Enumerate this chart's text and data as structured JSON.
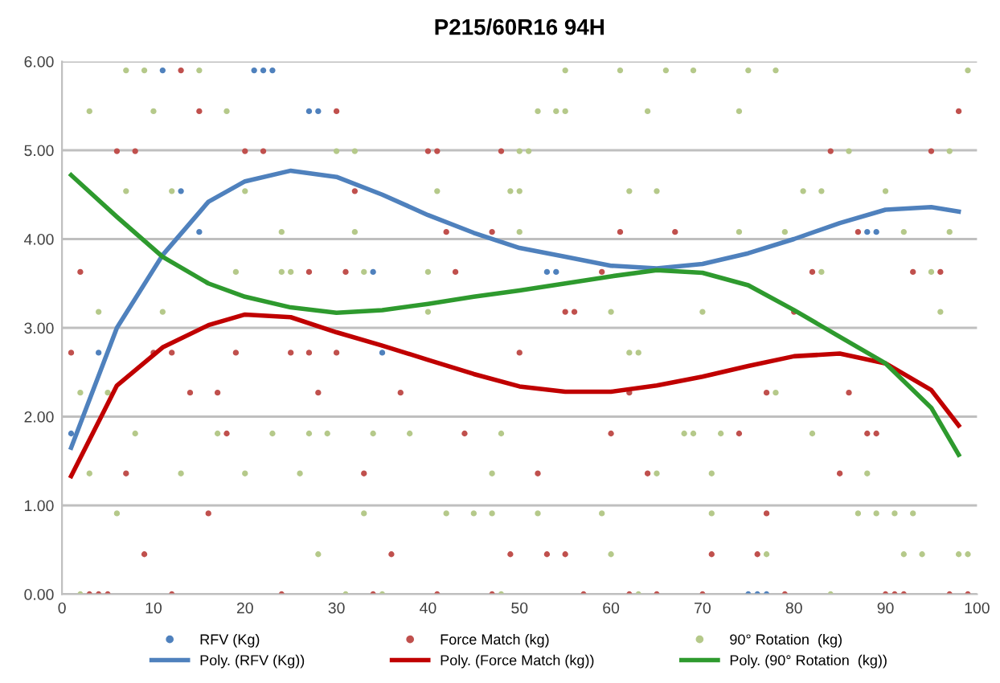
{
  "chart_data": {
    "type": "scatter",
    "title": "P215/60R16 94H",
    "xlim": [
      0,
      100
    ],
    "xticks": [
      0,
      10,
      20,
      30,
      40,
      50,
      60,
      70,
      80,
      90,
      100
    ],
    "ylim": [
      0,
      6
    ],
    "yticks": [
      {
        "value": 0,
        "label": "0.00"
      },
      {
        "value": 1,
        "label": "1.00"
      },
      {
        "value": 2,
        "label": "2.00"
      },
      {
        "value": 3,
        "label": "3.00"
      },
      {
        "value": 4,
        "label": "4.00"
      },
      {
        "value": 5,
        "label": "5.00"
      },
      {
        "value": 6,
        "label": "6.00"
      }
    ],
    "grid": "y",
    "legend": "bottom",
    "series": [
      {
        "name": "RFV (Kg)",
        "marker": "circle",
        "color": "#4f81bd",
        "x": [
          11,
          21,
          22,
          23,
          27,
          28,
          13,
          15,
          34,
          53,
          54,
          88,
          89,
          1,
          4,
          35,
          75,
          76,
          77
        ],
        "values": [
          5.9,
          5.9,
          5.9,
          5.9,
          5.44,
          5.44,
          4.54,
          4.08,
          3.63,
          3.63,
          3.63,
          4.08,
          4.08,
          1.81,
          2.72,
          2.72,
          0,
          0,
          0
        ]
      },
      {
        "name": "Force Match (kg)",
        "marker": "circle",
        "color": "#c0504d",
        "x": [
          2,
          13,
          15,
          6,
          8,
          20,
          22,
          30,
          32,
          27,
          31,
          40,
          41,
          42,
          47,
          43,
          48,
          61,
          67,
          59,
          55,
          56,
          80,
          82,
          84,
          87,
          93,
          96,
          95,
          98,
          1,
          10,
          12,
          19,
          25,
          27,
          30,
          14,
          17,
          28,
          37,
          18,
          44,
          7,
          33,
          16,
          9,
          36,
          49,
          3,
          4,
          5,
          12,
          24,
          34,
          41,
          47,
          50,
          60,
          74,
          88,
          89,
          52,
          64,
          85,
          77,
          53,
          55,
          71,
          76,
          62,
          77,
          86,
          57,
          62,
          65,
          70,
          79,
          90,
          91,
          92,
          97,
          99
        ],
        "values": [
          3.63,
          5.9,
          5.44,
          4.99,
          4.99,
          4.99,
          4.99,
          5.44,
          4.54,
          3.63,
          3.63,
          4.99,
          4.99,
          4.08,
          4.08,
          3.63,
          4.99,
          4.08,
          4.08,
          3.63,
          3.18,
          3.18,
          3.18,
          3.63,
          4.99,
          4.08,
          3.63,
          3.63,
          4.99,
          5.44,
          2.72,
          2.72,
          2.72,
          2.72,
          2.72,
          2.72,
          2.72,
          2.27,
          2.27,
          2.27,
          2.27,
          1.81,
          1.81,
          1.36,
          1.36,
          0.91,
          0.45,
          0.45,
          0.45,
          0,
          0,
          0,
          0,
          0,
          0,
          0,
          0,
          2.72,
          1.81,
          1.81,
          1.81,
          1.81,
          1.36,
          1.36,
          1.36,
          0.91,
          0.45,
          0.45,
          0.45,
          0.45,
          2.27,
          2.27,
          2.27,
          0,
          0,
          0,
          0,
          0,
          0,
          0,
          0,
          0,
          0
        ]
      },
      {
        "name": "90° Rotation  (kg)",
        "marker": "circle",
        "color": "#b5c98a",
        "x": [
          7,
          9,
          15,
          3,
          10,
          18,
          30,
          32,
          7,
          12,
          20,
          41,
          24,
          32,
          19,
          24,
          25,
          33,
          40,
          4,
          11,
          40,
          55,
          61,
          66,
          69,
          75,
          78,
          99,
          52,
          54,
          55,
          64,
          74,
          50,
          51,
          86,
          97,
          49,
          50,
          62,
          65,
          81,
          83,
          90,
          50,
          74,
          79,
          92,
          97,
          83,
          95,
          60,
          70,
          96,
          2,
          5,
          8,
          17,
          23,
          27,
          29,
          34,
          38,
          48,
          3,
          13,
          20,
          26,
          6,
          33,
          42,
          45,
          47,
          28,
          2,
          31,
          35,
          62,
          63,
          78,
          68,
          69,
          72,
          82,
          47,
          65,
          71,
          88,
          52,
          59,
          71,
          87,
          89,
          91,
          93,
          60,
          77,
          92,
          94,
          98,
          99,
          48,
          63,
          84
        ],
        "values": [
          5.9,
          5.9,
          5.9,
          5.44,
          5.44,
          5.44,
          4.99,
          4.99,
          4.54,
          4.54,
          4.54,
          4.54,
          4.08,
          4.08,
          3.63,
          3.63,
          3.63,
          3.63,
          3.63,
          3.18,
          3.18,
          3.18,
          5.9,
          5.9,
          5.9,
          5.9,
          5.9,
          5.9,
          5.9,
          5.44,
          5.44,
          5.44,
          5.44,
          5.44,
          4.99,
          4.99,
          4.99,
          4.99,
          4.54,
          4.54,
          4.54,
          4.54,
          4.54,
          4.54,
          4.54,
          4.08,
          4.08,
          4.08,
          4.08,
          4.08,
          3.63,
          3.63,
          3.18,
          3.18,
          3.18,
          2.27,
          2.27,
          1.81,
          1.81,
          1.81,
          1.81,
          1.81,
          1.81,
          1.81,
          1.81,
          1.36,
          1.36,
          1.36,
          1.36,
          0.91,
          0.91,
          0.91,
          0.91,
          0.91,
          0.45,
          0,
          0,
          0,
          2.72,
          2.72,
          2.27,
          1.81,
          1.81,
          1.81,
          1.81,
          1.36,
          1.36,
          1.36,
          1.36,
          0.91,
          0.91,
          0.91,
          0.91,
          0.91,
          0.91,
          0.91,
          0.45,
          0.45,
          0.45,
          0.45,
          0.45,
          0.45,
          0,
          0,
          0
        ]
      },
      {
        "name": "Poly. (RFV (Kg))",
        "type": "line",
        "marker": "none",
        "color": "#4f81bd",
        "x": [
          1,
          6,
          11,
          16,
          20,
          25,
          30,
          35,
          40,
          45,
          50,
          55,
          60,
          65,
          70,
          75,
          80,
          85,
          90,
          95,
          98
        ],
        "values": [
          1.65,
          3.0,
          3.82,
          4.42,
          4.65,
          4.77,
          4.7,
          4.5,
          4.27,
          4.07,
          3.9,
          3.8,
          3.7,
          3.67,
          3.72,
          3.84,
          4.0,
          4.18,
          4.33,
          4.36,
          4.31
        ]
      },
      {
        "name": "Poly. (Force Match (kg))",
        "type": "line",
        "marker": "none",
        "color": "#c00000",
        "x": [
          1,
          6,
          11,
          16,
          20,
          25,
          30,
          35,
          40,
          45,
          50,
          55,
          60,
          65,
          70,
          75,
          80,
          85,
          90,
          95,
          98
        ],
        "values": [
          1.33,
          2.35,
          2.78,
          3.03,
          3.15,
          3.12,
          2.95,
          2.8,
          2.64,
          2.48,
          2.34,
          2.28,
          2.28,
          2.35,
          2.45,
          2.57,
          2.68,
          2.71,
          2.6,
          2.3,
          1.9
        ]
      },
      {
        "name": "Poly. (90° Rotation  (kg))",
        "type": "line",
        "marker": "none",
        "color": "#2e9a2e",
        "x": [
          1,
          6,
          11,
          16,
          20,
          25,
          30,
          35,
          40,
          45,
          50,
          55,
          60,
          65,
          70,
          75,
          80,
          85,
          90,
          95,
          98
        ],
        "values": [
          4.72,
          4.25,
          3.8,
          3.5,
          3.35,
          3.23,
          3.17,
          3.2,
          3.27,
          3.35,
          3.42,
          3.5,
          3.58,
          3.65,
          3.62,
          3.48,
          3.2,
          2.9,
          2.6,
          2.1,
          1.57
        ]
      }
    ]
  }
}
